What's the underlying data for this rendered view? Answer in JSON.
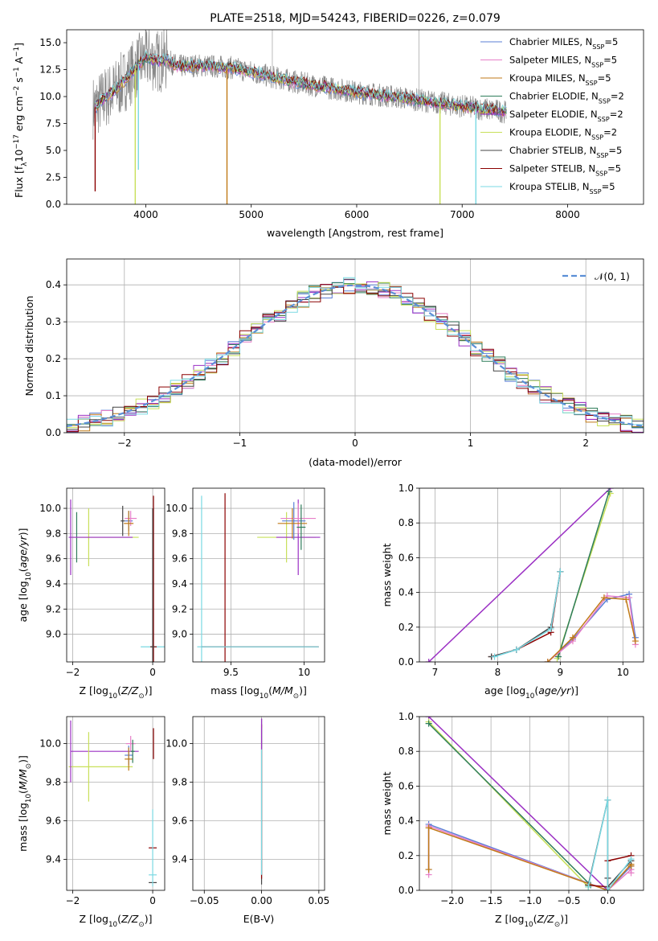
{
  "series_names": [
    "Chabrier MILES",
    "Salpeter MILES",
    "Kroupa MILES",
    "Chabrier ELODIE",
    "Salpeter ELODIE",
    "Kroupa ELODIE",
    "Chabrier STELIB",
    "Salpeter STELIB",
    "Kroupa STELIB"
  ],
  "series_colors": [
    "#5b7fd6",
    "#e77fc8",
    "#c07a17",
    "#2e7d5a",
    "#9b30c4",
    "#c8e05a",
    "#444444",
    "#8b0000",
    "#7ad9e3"
  ],
  "chart_data": [
    {
      "id": "spectrum",
      "type": "line",
      "title": "PLATE=2518, MJD=54243, FIBERID=0226, z=0.079",
      "xlabel": "wavelength [Angstrom, rest frame]",
      "ylabel": "Flux [f",
      "ylabel_sub": "λ",
      "ylabel_rest": "10",
      "ylabel_exp": "−17",
      "ylabel_units": " erg cm",
      "ylabel_exp2": "−2",
      "ylabel_s": " s",
      "ylabel_exp3": "−1",
      "ylabel_A": " A",
      "ylabel_exp4": "−1",
      "ylabel_close": "]",
      "xlim": [
        3250,
        8720
      ],
      "ylim": [
        0,
        16.2
      ],
      "xticks": [
        4000,
        5000,
        6000,
        7000,
        8000
      ],
      "yticks": [
        0.0,
        2.5,
        5.0,
        7.5,
        10.0,
        12.5,
        15.0
      ],
      "grid": false,
      "legend_location": "upper right",
      "legend": [
        {
          "label": "Chabrier MILES, N",
          "sub": "SSP",
          "tail": "=5"
        },
        {
          "label": "Salpeter MILES, N",
          "sub": "SSP",
          "tail": "=5"
        },
        {
          "label": "Kroupa MILES, N",
          "sub": "SSP",
          "tail": "=5"
        },
        {
          "label": "Chabrier ELODIE, N",
          "sub": "SSP",
          "tail": "=2"
        },
        {
          "label": "Salpeter ELODIE, N",
          "sub": "SSP",
          "tail": "=2"
        },
        {
          "label": "Kroupa ELODIE, N",
          "sub": "SSP",
          "tail": "=2"
        },
        {
          "label": "Chabrier STELIB, N",
          "sub": "SSP",
          "tail": "=5"
        },
        {
          "label": "Salpeter STELIB, N",
          "sub": "SSP",
          "tail": "=5"
        },
        {
          "label": "Kroupa STELIB, N",
          "sub": "SSP",
          "tail": "=5"
        }
      ],
      "data_color": "#888888",
      "data_range": [
        3500,
        7420
      ],
      "model_continuum": {
        "x": [
          3520,
          3600,
          3700,
          3800,
          3900,
          4000,
          4100,
          4200,
          4300,
          4500,
          4800,
          5000,
          5200,
          5500,
          6000,
          6500,
          7000,
          7400
        ],
        "y": [
          9.0,
          9.8,
          10.5,
          11.5,
          12.6,
          13.6,
          13.3,
          13.4,
          12.8,
          12.9,
          12.7,
          12.3,
          11.8,
          11.2,
          10.4,
          9.8,
          9.1,
          8.6
        ]
      },
      "drop_features": [
        {
          "x": 3520,
          "ymin": 1.2
        },
        {
          "x": 3900,
          "ymin": 0.0
        },
        {
          "x": 3930,
          "ymin": 3.2
        },
        {
          "x": 4770,
          "ymin": 0.0
        },
        {
          "x": 6790,
          "ymin": 0.0
        },
        {
          "x": 7130,
          "ymin": 0.0
        }
      ],
      "spikes": [
        {
          "x": 6590,
          "ymax": 16.2
        },
        {
          "x": 5200,
          "ymax": 16.2
        }
      ]
    },
    {
      "id": "residuals",
      "type": "line",
      "xlabel": "(data-model)/error",
      "ylabel": "Normed distribution",
      "xlim": [
        -2.5,
        2.5
      ],
      "ylim": [
        0.0,
        0.47
      ],
      "xticks": [
        -2,
        -1,
        0,
        1,
        2
      ],
      "yticks": [
        0.0,
        0.1,
        0.2,
        0.3,
        0.4
      ],
      "grid": true,
      "legend_location": "upper right",
      "reference_curve": {
        "name": "𝒩(0, 1)",
        "mean": 0,
        "sigma": 1,
        "color": "#5b8fd6"
      },
      "bin_width": 0.1
    },
    {
      "id": "age-vs-Z",
      "type": "scatter",
      "xlabel": "Z [log",
      "xlabel_sub": "10",
      "xlabel_tail": "(Z/Z",
      "xlabel_sub2": "⊙",
      "xlabel_close": ")]",
      "ylabel": "age  [log",
      "ylabel_sub": "10",
      "ylabel_tail": "(age/yr)]",
      "xlim": [
        -2.15,
        0.3
      ],
      "ylim": [
        8.78,
        10.16
      ],
      "xticks": [
        -2,
        0
      ],
      "yticks": [
        9.0,
        9.2,
        9.4,
        9.6,
        9.8,
        10.0
      ],
      "grid": true,
      "points": [
        {
          "x": 0.0,
          "y": 8.9,
          "xerr": 0.3,
          "yerr": 0.02,
          "series": 8
        },
        {
          "x": 0.02,
          "y": 8.9,
          "xerr": 0.08,
          "yerr": 1.2,
          "series": 7
        },
        {
          "x": 0.0,
          "y": 8.9,
          "xerr": 0.05,
          "yerr": 1.1,
          "series": 6
        },
        {
          "x": -1.6,
          "y": 9.77,
          "xerr": 0.0,
          "yerr": 0.23,
          "series": 5
        },
        {
          "x": -2.05,
          "y": 9.77,
          "xerr": 0.0,
          "yerr": 0.3,
          "series": 4
        },
        {
          "x": -1.9,
          "y": 9.77,
          "xerr": 0.0,
          "yerr": 0.2,
          "series": 3
        },
        {
          "x": -0.6,
          "y": 9.9,
          "xerr": 0.1,
          "yerr": 0.08,
          "series": 0
        },
        {
          "x": -0.55,
          "y": 9.92,
          "xerr": 0.15,
          "yerr": 0.06,
          "series": 1
        },
        {
          "x": -0.6,
          "y": 9.88,
          "xerr": 0.12,
          "yerr": 0.1,
          "series": 2
        },
        {
          "x": -1.2,
          "y": 9.77,
          "xerr": 0.85,
          "yerr": 0.0,
          "series": 5
        },
        {
          "x": -1.3,
          "y": 9.77,
          "xerr": 0.8,
          "yerr": 0.0,
          "series": 4
        },
        {
          "x": -0.75,
          "y": 9.9,
          "xerr": 0.05,
          "yerr": 0.12,
          "series": 6
        }
      ]
    },
    {
      "id": "age-vs-mass",
      "type": "scatter",
      "xlabel": "mass [log",
      "xlabel_sub": "10",
      "xlabel_tail": "(M/M",
      "xlabel_sub2": "⊙",
      "xlabel_close": ")]",
      "xlim": [
        9.24,
        10.14
      ],
      "ylim": [
        8.78,
        10.16
      ],
      "xticks": [
        9.5,
        10.0
      ],
      "yticks": [
        9.0,
        9.2,
        9.4,
        9.6,
        9.8,
        10.0
      ],
      "grid": true,
      "points": [
        {
          "x": 9.3,
          "y": 8.9,
          "xerr": 0.03,
          "yerr": 1.2,
          "series": 8
        },
        {
          "x": 9.46,
          "y": 8.9,
          "xerr": 0.0,
          "yerr": 1.22,
          "series": 7
        },
        {
          "x": 9.7,
          "y": 8.9,
          "xerr": 0.4,
          "yerr": 0.0,
          "series": 7
        },
        {
          "x": 9.7,
          "y": 8.9,
          "xerr": 0.4,
          "yerr": 0.0,
          "series": 8
        },
        {
          "x": 9.88,
          "y": 9.77,
          "xerr": 0.2,
          "yerr": 0.2,
          "series": 5
        },
        {
          "x": 9.96,
          "y": 9.77,
          "xerr": 0.15,
          "yerr": 0.3,
          "series": 4
        },
        {
          "x": 9.93,
          "y": 9.9,
          "xerr": 0.08,
          "yerr": 0.15,
          "series": 0
        },
        {
          "x": 9.96,
          "y": 9.92,
          "xerr": 0.12,
          "yerr": 0.12,
          "series": 1
        },
        {
          "x": 9.92,
          "y": 9.88,
          "xerr": 0.1,
          "yerr": 0.12,
          "series": 2
        },
        {
          "x": 9.98,
          "y": 9.85,
          "xerr": 0.03,
          "yerr": 0.18,
          "series": 3
        }
      ]
    },
    {
      "id": "massweight-vs-age",
      "type": "line",
      "xlabel": "age  [log",
      "xlabel_sub": "10",
      "xlabel_tail": "(age/yr)]",
      "ylabel": "mass weight",
      "xlim": [
        6.75,
        10.33
      ],
      "ylim": [
        0.0,
        1.0
      ],
      "xticks": [
        7,
        8,
        9,
        10
      ],
      "yticks": [
        0.0,
        0.2,
        0.4,
        0.6,
        0.8,
        1.0
      ],
      "grid": true,
      "series": [
        {
          "s": 4,
          "x": [
            6.9,
            9.8
          ],
          "y": [
            0.0,
            1.0
          ]
        },
        {
          "s": 5,
          "x": [
            8.95,
            9.8
          ],
          "y": [
            0.02,
            0.97
          ]
        },
        {
          "s": 3,
          "x": [
            8.97,
            9.78
          ],
          "y": [
            0.03,
            0.98
          ]
        },
        {
          "s": 0,
          "x": [
            8.8,
            9.2,
            9.75,
            10.1,
            10.2
          ],
          "y": [
            0.0,
            0.13,
            0.36,
            0.39,
            0.14
          ]
        },
        {
          "s": 1,
          "x": [
            8.8,
            9.2,
            9.75,
            10.1,
            10.2
          ],
          "y": [
            0.0,
            0.12,
            0.38,
            0.37,
            0.1
          ]
        },
        {
          "s": 2,
          "x": [
            8.8,
            9.2,
            9.7,
            10.05,
            10.2
          ],
          "y": [
            0.0,
            0.14,
            0.37,
            0.36,
            0.12
          ]
        },
        {
          "s": 7,
          "x": [
            7.9,
            8.3,
            8.85,
            9.0
          ],
          "y": [
            0.03,
            0.07,
            0.17,
            0.52
          ]
        },
        {
          "s": 6,
          "x": [
            7.9,
            8.3,
            8.85,
            9.0
          ],
          "y": [
            0.03,
            0.07,
            0.2,
            0.52
          ]
        },
        {
          "s": 8,
          "x": [
            7.95,
            8.3,
            8.85,
            9.0
          ],
          "y": [
            0.03,
            0.07,
            0.19,
            0.52
          ]
        }
      ]
    },
    {
      "id": "mass-vs-Z",
      "type": "scatter",
      "xlabel": "Z [log",
      "xlabel_sub": "10",
      "xlabel_tail": "(Z/Z",
      "xlabel_sub2": "⊙",
      "xlabel_close": ")]",
      "ylabel": "mass [log",
      "ylabel_sub": "10",
      "ylabel_tail": "(M/M",
      "ylabel_sub2": "⊙",
      "ylabel_close": ")]",
      "xlim": [
        -2.15,
        0.3
      ],
      "ylim": [
        9.24,
        10.14
      ],
      "xticks": [
        -2,
        0
      ],
      "yticks": [
        9.4,
        9.6,
        9.8,
        10.0
      ],
      "grid": true,
      "points": [
        {
          "x": 0.0,
          "y": 9.28,
          "xerr": 0.1,
          "yerr": 0.0,
          "series": 6
        },
        {
          "x": 0.0,
          "y": 9.32,
          "xerr": 0.1,
          "yerr": 0.0,
          "series": 8
        },
        {
          "x": 0.0,
          "y": 9.46,
          "xerr": 0.1,
          "yerr": 0.0,
          "series": 7
        },
        {
          "x": 0.0,
          "y": 9.46,
          "xerr": 0.0,
          "yerr": 0.2,
          "series": 8
        },
        {
          "x": 0.02,
          "y": 10.0,
          "xerr": 0.0,
          "yerr": 0.08,
          "series": 7
        },
        {
          "x": -1.2,
          "y": 9.96,
          "xerr": 0.85,
          "yerr": 0.0,
          "series": 4
        },
        {
          "x": -1.3,
          "y": 9.88,
          "xerr": 0.8,
          "yerr": 0.0,
          "series": 5
        },
        {
          "x": -2.05,
          "y": 9.96,
          "xerr": 0.0,
          "yerr": 0.16,
          "series": 4
        },
        {
          "x": -1.6,
          "y": 9.88,
          "xerr": 0.0,
          "yerr": 0.18,
          "series": 5
        },
        {
          "x": -0.6,
          "y": 9.94,
          "xerr": 0.1,
          "yerr": 0.05,
          "series": 0
        },
        {
          "x": -0.55,
          "y": 10.0,
          "xerr": 0.12,
          "yerr": 0.04,
          "series": 1
        },
        {
          "x": -0.6,
          "y": 9.92,
          "xerr": 0.1,
          "yerr": 0.06,
          "series": 2
        },
        {
          "x": -0.5,
          "y": 9.96,
          "xerr": 0.05,
          "yerr": 0.06,
          "series": 3
        }
      ]
    },
    {
      "id": "mass-vs-EBV",
      "type": "scatter",
      "xlabel": "E(B-V)",
      "xlim": [
        -0.06,
        0.055
      ],
      "ylim": [
        9.24,
        10.14
      ],
      "xticks": [
        -0.05,
        0.0,
        0.05
      ],
      "xtick_labels": [
        "−0.05",
        "0.00",
        "0.05"
      ],
      "yticks": [
        9.4,
        9.6,
        9.8,
        10.0
      ],
      "grid": true,
      "points": [
        {
          "x": 0.0,
          "y": 9.7,
          "xerr": 0.0,
          "yerr": 0.43,
          "series": 6
        },
        {
          "x": 0.0,
          "y": 9.7,
          "xerr": 0.0,
          "yerr": 0.4,
          "series": 7
        },
        {
          "x": 0.0,
          "y": 9.7,
          "xerr": 0.0,
          "yerr": 0.38,
          "series": 8
        },
        {
          "x": 0.0,
          "y": 10.05,
          "xerr": 0.0,
          "yerr": 0.08,
          "series": 4
        }
      ]
    },
    {
      "id": "massweight-vs-Z",
      "type": "line",
      "xlabel": "Z [log",
      "xlabel_sub": "10",
      "xlabel_tail": "(Z/Z",
      "xlabel_sub2": "⊙",
      "xlabel_close": ")]",
      "ylabel": "mass weight",
      "xlim": [
        -2.42,
        0.46
      ],
      "ylim": [
        0.0,
        1.0
      ],
      "xticks": [
        -2.0,
        -1.5,
        -1.0,
        -0.5,
        0.0
      ],
      "xtick_labels": [
        "−2.0",
        "−1.5",
        "−1.0",
        "−0.5",
        "0.0"
      ],
      "yticks": [
        0.0,
        0.2,
        0.4,
        0.6,
        0.8,
        1.0
      ],
      "grid": true,
      "series": [
        {
          "s": 4,
          "x": [
            -2.3,
            0.0
          ],
          "y": [
            1.0,
            0.0
          ]
        },
        {
          "s": 5,
          "x": [
            -2.3,
            -0.25
          ],
          "y": [
            0.97,
            0.02
          ]
        },
        {
          "s": 3,
          "x": [
            -2.3,
            -0.22
          ],
          "y": [
            0.96,
            0.03
          ]
        },
        {
          "s": 0,
          "x": [
            -2.3,
            -2.3,
            0.0,
            0.3,
            0.3
          ],
          "y": [
            0.12,
            0.38,
            0.0,
            0.14,
            0.12
          ]
        },
        {
          "s": 1,
          "x": [
            -2.3,
            -2.3,
            0.0,
            0.3,
            0.3
          ],
          "y": [
            0.09,
            0.37,
            0.0,
            0.12,
            0.1
          ]
        },
        {
          "s": 2,
          "x": [
            -2.3,
            -2.3,
            0.0,
            0.3,
            0.3
          ],
          "y": [
            0.12,
            0.36,
            0.0,
            0.15,
            0.14
          ]
        },
        {
          "s": 7,
          "x": [
            -0.25,
            0.0,
            0.0,
            0.3
          ],
          "y": [
            0.03,
            0.02,
            0.17,
            0.2
          ]
        },
        {
          "s": 6,
          "x": [
            -0.25,
            0.0,
            0.0,
            0.0,
            0.3
          ],
          "y": [
            0.03,
            0.52,
            0.07,
            0.02,
            0.17
          ]
        },
        {
          "s": 8,
          "x": [
            -0.25,
            0.0,
            0.0,
            0.3
          ],
          "y": [
            0.02,
            0.52,
            0.0,
            0.18
          ]
        }
      ]
    }
  ]
}
